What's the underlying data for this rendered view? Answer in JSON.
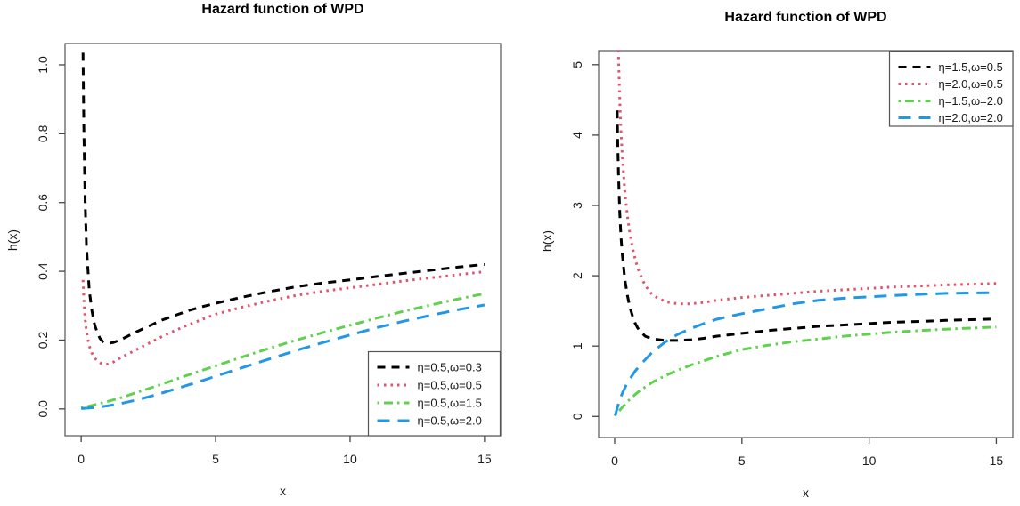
{
  "page": {
    "background": "#ffffff"
  },
  "chart_data": [
    {
      "type": "line",
      "title": "Hazard function of WPD",
      "xlabel": "x",
      "ylabel": "h(x)",
      "xlim": [
        -0.6,
        15.6
      ],
      "ylim": [
        -0.078,
        1.062
      ],
      "xticks": [
        0,
        5,
        10,
        15
      ],
      "xtick_labels": [
        "0",
        "5",
        "10",
        "15"
      ],
      "yticks": [
        0,
        0.2,
        0.4,
        0.6,
        0.8,
        1.0
      ],
      "ytick_labels": [
        "0.0",
        "0.2",
        "0.4",
        "0.6",
        "0.8",
        "1.0"
      ],
      "grid": false,
      "legend_position": "bottomright",
      "series": [
        {
          "name": "η=0.5,ω=0.3",
          "color": "#000000",
          "linetype": "dashed",
          "x": [
            0.07,
            0.1,
            0.15,
            0.2,
            0.3,
            0.4,
            0.5,
            0.6,
            0.7,
            0.8,
            0.9,
            1.0,
            1.2,
            1.5,
            2,
            2.5,
            3,
            3.5,
            4,
            4.5,
            5,
            6,
            7,
            8,
            9,
            10,
            11,
            12,
            13,
            14,
            15
          ],
          "y": [
            1.035,
            0.82,
            0.6,
            0.47,
            0.345,
            0.285,
            0.245,
            0.222,
            0.205,
            0.196,
            0.191,
            0.19,
            0.193,
            0.202,
            0.222,
            0.24,
            0.258,
            0.272,
            0.286,
            0.297,
            0.307,
            0.325,
            0.341,
            0.355,
            0.366,
            0.375,
            0.385,
            0.394,
            0.403,
            0.412,
            0.42
          ]
        },
        {
          "name": "η=0.5,ω=0.5",
          "color": "#DF536B",
          "linetype": "dotted",
          "x": [
            0.07,
            0.1,
            0.15,
            0.2,
            0.3,
            0.4,
            0.5,
            0.6,
            0.7,
            0.8,
            0.9,
            1.0,
            1.2,
            1.5,
            2,
            2.5,
            3,
            3.5,
            4,
            4.5,
            5,
            6,
            7,
            8,
            9,
            10,
            11,
            12,
            13,
            14,
            15
          ],
          "y": [
            0.375,
            0.32,
            0.26,
            0.225,
            0.183,
            0.162,
            0.148,
            0.14,
            0.134,
            0.131,
            0.13,
            0.13,
            0.136,
            0.15,
            0.17,
            0.19,
            0.21,
            0.228,
            0.245,
            0.26,
            0.275,
            0.296,
            0.314,
            0.33,
            0.342,
            0.352,
            0.362,
            0.372,
            0.381,
            0.39,
            0.399
          ]
        },
        {
          "name": "η=0.5,ω=1.5",
          "color": "#61D04F",
          "linetype": "dotdash",
          "x": [
            0,
            0.5,
            1,
            1.5,
            2,
            2.5,
            3,
            3.5,
            4,
            4.5,
            5,
            6,
            7,
            8,
            9,
            10,
            11,
            12,
            13,
            14,
            15
          ],
          "y": [
            0.003,
            0.012,
            0.022,
            0.033,
            0.046,
            0.059,
            0.072,
            0.086,
            0.099,
            0.112,
            0.125,
            0.151,
            0.176,
            0.2,
            0.222,
            0.243,
            0.264,
            0.284,
            0.302,
            0.319,
            0.335
          ]
        },
        {
          "name": "η=0.5,ω=2.0",
          "color": "#2297E6",
          "linetype": "longdash",
          "x": [
            0,
            0.5,
            1,
            1.5,
            2,
            2.5,
            3,
            3.5,
            4,
            4.5,
            5,
            6,
            7,
            8,
            9,
            10,
            11,
            12,
            13,
            14,
            15
          ],
          "y": [
            0.001,
            0.004,
            0.009,
            0.016,
            0.025,
            0.035,
            0.046,
            0.058,
            0.07,
            0.082,
            0.095,
            0.12,
            0.145,
            0.17,
            0.193,
            0.215,
            0.236,
            0.255,
            0.272,
            0.288,
            0.302
          ]
        }
      ]
    },
    {
      "type": "line",
      "title": "Hazard function of WPD",
      "xlabel": "x",
      "ylabel": "h(x)",
      "xlim": [
        -0.63,
        15.65
      ],
      "ylim": [
        -0.3,
        5.2
      ],
      "xticks": [
        0,
        5,
        10,
        15
      ],
      "xtick_labels": [
        "0",
        "5",
        "10",
        "15"
      ],
      "yticks": [
        0,
        1,
        2,
        3,
        4,
        5
      ],
      "ytick_labels": [
        "0",
        "1",
        "2",
        "3",
        "4",
        "5"
      ],
      "grid": false,
      "legend_position": "topright",
      "series": [
        {
          "name": "η=1.5,ω=0.5",
          "color": "#000000",
          "linetype": "dashed",
          "x": [
            0.1,
            0.12,
            0.15,
            0.2,
            0.25,
            0.3,
            0.4,
            0.5,
            0.6,
            0.7,
            0.8,
            0.9,
            1.0,
            1.2,
            1.5,
            2,
            2.5,
            3,
            3.5,
            4,
            5,
            6,
            7,
            8,
            9,
            10,
            11,
            12,
            13,
            14,
            15
          ],
          "y": [
            4.35,
            3.9,
            3.45,
            2.9,
            2.55,
            2.3,
            1.95,
            1.72,
            1.55,
            1.43,
            1.33,
            1.26,
            1.21,
            1.14,
            1.1,
            1.08,
            1.08,
            1.09,
            1.11,
            1.14,
            1.18,
            1.22,
            1.25,
            1.28,
            1.3,
            1.32,
            1.34,
            1.35,
            1.365,
            1.375,
            1.385
          ]
        },
        {
          "name": "η=2.0,ω=0.5",
          "color": "#DF536B",
          "linetype": "dotted",
          "x": [
            0.14,
            0.16,
            0.2,
            0.25,
            0.3,
            0.4,
            0.5,
            0.6,
            0.7,
            0.8,
            0.9,
            1.0,
            1.2,
            1.5,
            2,
            2.5,
            3,
            3.5,
            4,
            5,
            6,
            7,
            8,
            9,
            10,
            11,
            12,
            13,
            14,
            15
          ],
          "y": [
            5.3,
            5.0,
            4.5,
            4.05,
            3.7,
            3.2,
            2.85,
            2.6,
            2.4,
            2.25,
            2.12,
            2.02,
            1.86,
            1.72,
            1.63,
            1.6,
            1.6,
            1.62,
            1.65,
            1.69,
            1.72,
            1.75,
            1.78,
            1.8,
            1.82,
            1.84,
            1.855,
            1.87,
            1.88,
            1.89
          ]
        },
        {
          "name": "η=1.5,ω=2.0",
          "color": "#61D04F",
          "linetype": "dotdash",
          "x": [
            0,
            0.3,
            0.5,
            0.8,
            1,
            1.5,
            2,
            2.5,
            3,
            3.5,
            4,
            5,
            6,
            7,
            8,
            9,
            10,
            11,
            12,
            13,
            14,
            15
          ],
          "y": [
            0.01,
            0.13,
            0.21,
            0.31,
            0.37,
            0.49,
            0.58,
            0.66,
            0.73,
            0.79,
            0.85,
            0.95,
            1.01,
            1.06,
            1.1,
            1.14,
            1.17,
            1.2,
            1.22,
            1.24,
            1.255,
            1.27
          ]
        },
        {
          "name": "η=2.0,ω=2.0",
          "color": "#2297E6",
          "linetype": "longdash",
          "x": [
            0.02,
            0.1,
            0.2,
            0.3,
            0.5,
            0.8,
            1,
            1.5,
            2,
            2.5,
            3,
            3.5,
            4,
            5,
            6,
            7,
            8,
            9,
            10,
            11,
            12,
            13,
            14,
            15
          ],
          "y": [
            0.01,
            0.12,
            0.24,
            0.33,
            0.48,
            0.64,
            0.73,
            0.92,
            1.06,
            1.17,
            1.25,
            1.32,
            1.38,
            1.46,
            1.53,
            1.6,
            1.65,
            1.68,
            1.7,
            1.72,
            1.735,
            1.75,
            1.755,
            1.76
          ]
        }
      ]
    }
  ]
}
